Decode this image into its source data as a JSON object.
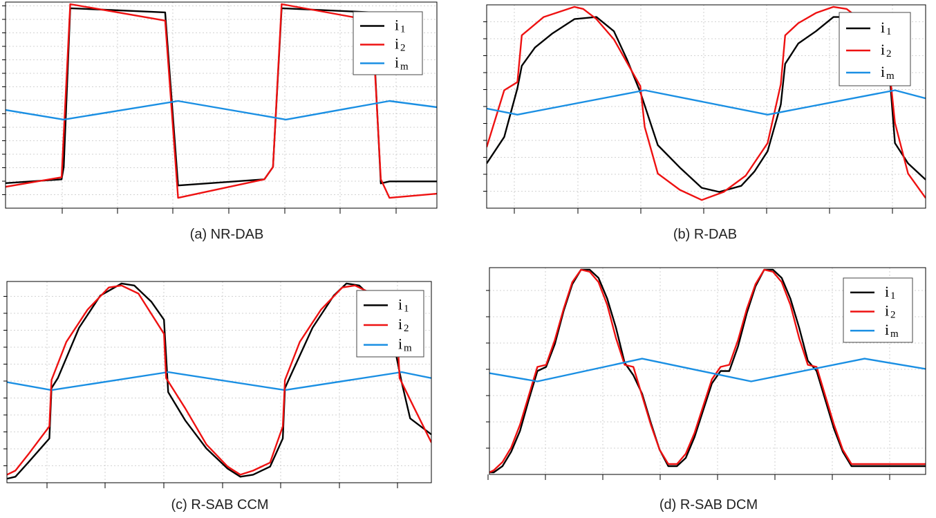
{
  "chart_data": [
    {
      "type": "line",
      "caption": "(a) NR-DAB",
      "xlim": [
        0,
        100
      ],
      "ylim": [
        0,
        100
      ],
      "grid": true,
      "legend": "top-right",
      "series": [
        {
          "name": "i",
          "sub": "1",
          "color": "#000000",
          "x": [
            -1,
            13,
            13.5,
            15,
            37,
            40,
            60,
            62,
            64,
            85,
            87,
            89,
            100
          ],
          "y": [
            12,
            14,
            20,
            97,
            95,
            11,
            14,
            20,
            97,
            95,
            12,
            13,
            13
          ]
        },
        {
          "name": "i",
          "sub": "2",
          "color": "#ee1111",
          "x": [
            -1,
            13,
            15,
            37,
            40,
            60,
            62,
            64,
            85,
            87,
            89,
            100
          ],
          "y": [
            10,
            15,
            99,
            91,
            5,
            14,
            20,
            99,
            91,
            14,
            5,
            7
          ]
        },
        {
          "name": "i",
          "sub": "m",
          "color": "#1a8fe3",
          "x": [
            -1,
            13.5,
            40,
            65,
            89,
            100
          ],
          "y": [
            48,
            43,
            52,
            43,
            52,
            49
          ]
        }
      ]
    },
    {
      "type": "line",
      "caption": "(b) R-DAB",
      "xlim": [
        0,
        100
      ],
      "ylim": [
        0,
        100
      ],
      "grid": true,
      "legend": "top-right",
      "series": [
        {
          "name": "i",
          "sub": "1",
          "color": "#000000",
          "x": [
            0,
            4,
            7,
            8,
            11,
            15,
            20,
            25,
            29,
            32,
            35,
            39,
            44,
            49,
            53,
            58,
            61,
            64,
            67,
            68,
            71,
            75,
            79,
            83,
            88,
            92,
            93,
            96,
            100
          ],
          "y": [
            22,
            35,
            59,
            70,
            79,
            86,
            93,
            94,
            87,
            73,
            57,
            31,
            20,
            10,
            8,
            11,
            18,
            28,
            51,
            71,
            81,
            87,
            94,
            94,
            87,
            60,
            32,
            22,
            14
          ]
        },
        {
          "name": "i",
          "sub": "2",
          "color": "#ee1111",
          "x": [
            0,
            4,
            7,
            8,
            13,
            20,
            22,
            25,
            29,
            35,
            36,
            39,
            44,
            49,
            54,
            59,
            64,
            67,
            68,
            71,
            75,
            79,
            82,
            85,
            88,
            92,
            93,
            96,
            100
          ],
          "y": [
            30,
            58,
            62,
            85,
            94,
            99,
            98,
            93,
            83,
            60,
            40,
            17,
            9,
            4,
            8,
            16,
            32,
            61,
            85,
            91,
            96,
            99,
            98,
            93,
            83,
            63,
            42,
            17,
            5
          ]
        },
        {
          "name": "i",
          "sub": "m",
          "color": "#1a8fe3",
          "x": [
            0,
            7,
            36,
            64,
            93,
            100
          ],
          "y": [
            49,
            46,
            58,
            46,
            58,
            54
          ]
        }
      ]
    },
    {
      "type": "line",
      "caption": "(c) R-SAB CCM",
      "xlim": [
        0,
        100
      ],
      "ylim": [
        0,
        100
      ],
      "grid": true,
      "legend": "top-right",
      "series": [
        {
          "name": "i",
          "sub": "1",
          "color": "#000000",
          "x": [
            0,
            2,
            5,
            10,
            10.5,
            12,
            17,
            22,
            27,
            30,
            34,
            37,
            38,
            42,
            47,
            52,
            55,
            58,
            62,
            65,
            65.5,
            67,
            72,
            77,
            80,
            83,
            87,
            90,
            93,
            95,
            100
          ],
          "y": [
            2,
            3,
            10,
            22,
            47,
            52,
            77,
            93,
            99,
            98,
            90,
            81,
            45,
            31,
            17,
            7,
            3,
            4,
            8,
            22,
            47,
            54,
            77,
            93,
            99,
            98,
            90,
            81,
            50,
            32,
            24
          ]
        },
        {
          "name": "i",
          "sub": "m",
          "color": "#1a8fe3",
          "x": [
            0,
            10.5,
            38,
            65.5,
            93,
            100
          ],
          "y": [
            50,
            46,
            55,
            46,
            55,
            52
          ]
        },
        {
          "name": "i",
          "sub": "2",
          "color": "#ee1111",
          "x": [
            0,
            2,
            5,
            10,
            10.5,
            14,
            19,
            24,
            27,
            31,
            37,
            37.5,
            42,
            47,
            52,
            55,
            58,
            62,
            65,
            65.5,
            69,
            74,
            79,
            82,
            86,
            92,
            92.5,
            96,
            100
          ],
          "y": [
            4,
            6,
            14,
            28,
            51,
            70,
            86,
            97,
            98,
            94,
            74,
            52,
            37,
            19,
            8,
            4,
            6,
            10,
            28,
            51,
            70,
            86,
            97,
            98,
            94,
            74,
            52,
            37,
            20
          ]
        }
      ]
    },
    {
      "type": "line",
      "caption": "(d) R-SAB DCM",
      "xlim": [
        0,
        100
      ],
      "ylim": [
        0,
        100
      ],
      "grid": true,
      "legend": "top-right",
      "series": [
        {
          "name": "i",
          "sub": "1",
          "color": "#000000",
          "x": [
            0,
            1,
            3,
            5,
            7,
            9,
            11,
            13,
            15,
            17,
            19,
            21,
            23,
            25,
            27,
            29,
            31,
            33,
            35,
            37,
            39,
            41,
            43,
            45,
            47,
            49,
            51,
            53,
            55,
            57,
            59,
            61,
            63,
            65,
            67,
            69,
            71,
            73,
            75,
            77,
            79,
            81,
            83,
            85,
            87,
            89,
            91,
            93,
            95,
            97,
            99,
            100
          ],
          "y": [
            1,
            1,
            4,
            11,
            21,
            36,
            50,
            52,
            63,
            79,
            92,
            99,
            99,
            95,
            85,
            71,
            54,
            48,
            39,
            25,
            12,
            4,
            4,
            8,
            18,
            31,
            44,
            50,
            50,
            62,
            78,
            91,
            99,
            99,
            95,
            85,
            71,
            55,
            50,
            36,
            22,
            11,
            4,
            4,
            4,
            4,
            4,
            4,
            4,
            4,
            4,
            4
          ]
        },
        {
          "name": "i",
          "sub": "2",
          "color": "#ee1111",
          "x": [
            0,
            1,
            3,
            5,
            7,
            9,
            11,
            13,
            15,
            17,
            19,
            21,
            23,
            25,
            27,
            29,
            31,
            33,
            35,
            37,
            39,
            41,
            43,
            45,
            47,
            49,
            51,
            53,
            55,
            57,
            59,
            61,
            63,
            65,
            67,
            69,
            71,
            73,
            75,
            77,
            79,
            81,
            83,
            85,
            87,
            89,
            91,
            93,
            95,
            97,
            99,
            100
          ],
          "y": [
            1,
            2,
            6,
            13,
            24,
            38,
            52,
            53,
            65,
            80,
            93,
            99,
            98,
            93,
            82,
            66,
            53,
            52,
            38,
            24,
            12,
            5,
            5,
            10,
            20,
            33,
            46,
            52,
            53,
            65,
            80,
            92,
            99,
            98,
            93,
            82,
            66,
            53,
            52,
            38,
            24,
            12,
            5,
            5,
            5,
            5,
            5,
            5,
            5,
            5,
            5,
            5
          ]
        },
        {
          "name": "i",
          "sub": "m",
          "color": "#1a8fe3",
          "x": [
            0,
            11,
            35,
            60,
            86,
            100
          ],
          "y": [
            49,
            45,
            56,
            45,
            56,
            51
          ]
        }
      ]
    }
  ]
}
